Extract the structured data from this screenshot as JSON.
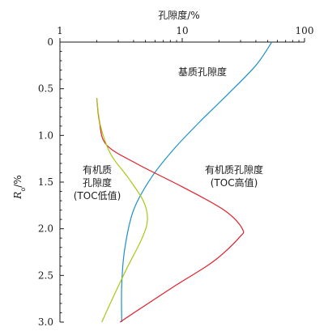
{
  "chart_data": {
    "type": "line",
    "xlabel": "孔隙度/%",
    "ylabel_main": "R",
    "ylabel_sub": "o",
    "ylabel_unit": "/%",
    "x_scale": "log",
    "x_position": "top",
    "xlim": [
      1,
      100
    ],
    "xticks": [
      1,
      10,
      100
    ],
    "xtick_labels": [
      "1",
      "10",
      "100"
    ],
    "ylim": [
      0,
      3
    ],
    "y_inverted": true,
    "yticks": [
      0,
      0.5,
      1.0,
      1.5,
      2.0,
      2.5,
      3.0
    ],
    "ytick_labels": [
      "0",
      "0.5",
      "1.0",
      "1.5",
      "2.0",
      "2.5",
      "3.0"
    ],
    "grid": false,
    "series": [
      {
        "key": "matrix",
        "color": "#1e90c8",
        "points": [
          [
            54,
            0.0
          ],
          [
            40,
            0.25
          ],
          [
            24,
            0.55
          ],
          [
            14,
            0.85
          ],
          [
            8.5,
            1.15
          ],
          [
            5.6,
            1.45
          ],
          [
            4.0,
            1.8
          ],
          [
            3.4,
            2.2
          ],
          [
            3.2,
            2.6
          ],
          [
            3.2,
            3.0
          ]
        ]
      },
      {
        "key": "organic-high",
        "color": "#e0202c",
        "points": [
          [
            2.0,
            0.6
          ],
          [
            2.1,
            0.85
          ],
          [
            2.4,
            1.1
          ],
          [
            4.2,
            1.3
          ],
          [
            10,
            1.55
          ],
          [
            22,
            1.8
          ],
          [
            31,
            2.0
          ],
          [
            29,
            2.1
          ],
          [
            18,
            2.35
          ],
          [
            9,
            2.6
          ],
          [
            4.6,
            2.85
          ],
          [
            3.1,
            3.0
          ]
        ]
      },
      {
        "key": "organic-low",
        "color": "#a8c814",
        "points": [
          [
            2.0,
            0.6
          ],
          [
            2.15,
            0.9
          ],
          [
            2.6,
            1.2
          ],
          [
            3.6,
            1.45
          ],
          [
            4.8,
            1.7
          ],
          [
            5.2,
            1.9
          ],
          [
            4.7,
            2.1
          ],
          [
            3.6,
            2.4
          ],
          [
            2.8,
            2.7
          ],
          [
            2.2,
            3.0
          ]
        ]
      }
    ],
    "annotations": [
      {
        "key": "matrix",
        "lines": [
          "基质孔隙度"
        ]
      },
      {
        "key": "organic-high",
        "lines": [
          "有机质孔隙度",
          "(TOC高值)"
        ]
      },
      {
        "key": "organic-low",
        "lines": [
          "有机质",
          "孔隙度",
          "(TOC低值)"
        ]
      }
    ]
  }
}
